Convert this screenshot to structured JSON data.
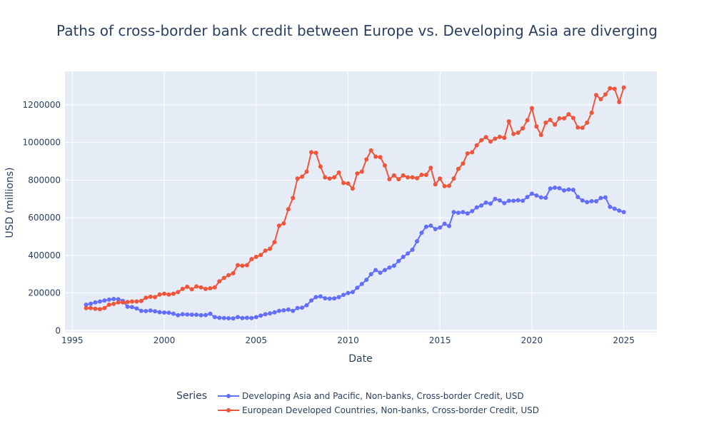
{
  "chart_data": {
    "type": "line",
    "title": "Paths of cross-border bank credit between Europe vs. Developing Asia are diverging",
    "xlabel": "Date",
    "ylabel": "USD (millions)",
    "xlim": [
      1994.6,
      2026.8
    ],
    "ylim": [
      -10000,
      1378000
    ],
    "x_ticks": [
      1995,
      2000,
      2005,
      2010,
      2015,
      2020,
      2025
    ],
    "x_tick_labels": [
      "1995",
      "2000",
      "2005",
      "2010",
      "2015",
      "2020",
      "2025"
    ],
    "y_ticks": [
      0,
      200000,
      400000,
      600000,
      800000,
      1000000,
      1200000
    ],
    "y_tick_labels": [
      "0",
      "200000",
      "400000",
      "600000",
      "800000",
      "1000000",
      "1200000"
    ],
    "grid": true,
    "legend_title": "Series",
    "legend_position": "bottom",
    "background_color": "#e5ecf6",
    "series": [
      {
        "name": "Developing Asia and Pacific, Non-banks, Cross-border Credit, USD",
        "color": "#636efa",
        "x_start": 1995.75,
        "x_step": 0.25,
        "values": [
          138000,
          143000,
          150000,
          155000,
          160000,
          165000,
          168000,
          167000,
          158000,
          127000,
          125000,
          118000,
          105000,
          104000,
          107000,
          103000,
          98000,
          96000,
          95000,
          90000,
          82000,
          87000,
          86000,
          85000,
          85000,
          82000,
          83000,
          90000,
          72000,
          68000,
          67000,
          66000,
          65000,
          72000,
          67000,
          68000,
          67000,
          72000,
          80000,
          87000,
          92000,
          97000,
          105000,
          108000,
          112000,
          105000,
          120000,
          122000,
          135000,
          160000,
          178000,
          182000,
          172000,
          170000,
          171000,
          178000,
          190000,
          200000,
          205000,
          228000,
          248000,
          270000,
          300000,
          322000,
          308000,
          322000,
          335000,
          345000,
          370000,
          392000,
          410000,
          430000,
          475000,
          520000,
          552000,
          558000,
          540000,
          548000,
          568000,
          556000,
          630000,
          626000,
          630000,
          623000,
          635000,
          655000,
          665000,
          680000,
          675000,
          700000,
          692000,
          678000,
          690000,
          690000,
          693000,
          690000,
          710000,
          728000,
          718000,
          708000,
          706000,
          755000,
          760000,
          757000,
          745000,
          750000,
          748000,
          710000,
          692000,
          683000,
          688000,
          688000,
          705000,
          708000,
          658000,
          648000,
          638000,
          630000
        ]
      },
      {
        "name": "European Developed Countries, Non-banks, Cross-border Credit, USD",
        "color": "#ef553b",
        "x_start": 1995.75,
        "x_step": 0.25,
        "values": [
          120000,
          120000,
          116000,
          114000,
          120000,
          138000,
          142000,
          150000,
          150000,
          152000,
          155000,
          155000,
          158000,
          175000,
          180000,
          178000,
          192000,
          196000,
          192000,
          196000,
          205000,
          222000,
          233000,
          220000,
          235000,
          230000,
          222000,
          225000,
          230000,
          262000,
          280000,
          295000,
          305000,
          348000,
          345000,
          348000,
          380000,
          392000,
          402000,
          425000,
          435000,
          470000,
          558000,
          570000,
          645000,
          705000,
          808000,
          818000,
          845000,
          948000,
          945000,
          872000,
          815000,
          808000,
          815000,
          840000,
          785000,
          782000,
          755000,
          835000,
          845000,
          910000,
          958000,
          925000,
          922000,
          878000,
          805000,
          825000,
          805000,
          825000,
          815000,
          815000,
          810000,
          828000,
          828000,
          865000,
          778000,
          808000,
          768000,
          770000,
          808000,
          860000,
          888000,
          942000,
          948000,
          985000,
          1012000,
          1028000,
          1005000,
          1020000,
          1030000,
          1025000,
          1112000,
          1045000,
          1052000,
          1075000,
          1118000,
          1182000,
          1085000,
          1040000,
          1105000,
          1120000,
          1095000,
          1128000,
          1128000,
          1150000,
          1130000,
          1080000,
          1078000,
          1105000,
          1158000,
          1252000,
          1230000,
          1255000,
          1288000,
          1285000,
          1215000,
          1292000
        ]
      }
    ]
  }
}
